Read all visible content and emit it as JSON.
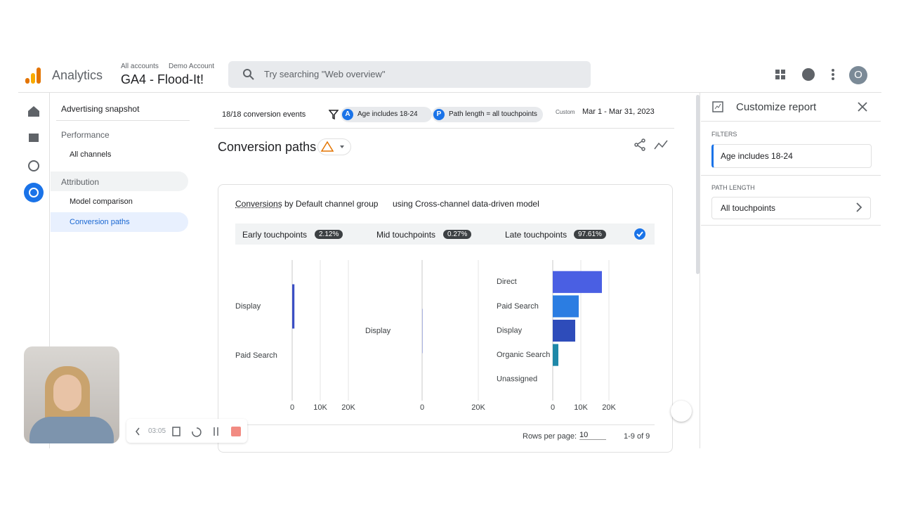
{
  "header": {
    "app": "Analytics",
    "breadcrumb_root": "All accounts",
    "breadcrumb_account": "Demo Account",
    "property": "GA4 - Flood-It!",
    "search_placeholder": "Try searching \"Web overview\"",
    "avatar": "O"
  },
  "nav": {
    "top": "Advertising snapshot",
    "sections": [
      {
        "label": "Performance",
        "items": [
          "All channels"
        ]
      },
      {
        "label": "Attribution",
        "items": [
          "Model comparison",
          "Conversion paths"
        ]
      }
    ]
  },
  "toolbar": {
    "events": "18/18 conversion events",
    "filter_a_badge": "A",
    "filter_a": "Age includes 18-24",
    "filter_p_badge": "P",
    "filter_p": "Path length = all touchpoints",
    "date_label": "Custom",
    "date_range": "Mar 1 - Mar 31, 2023"
  },
  "report": {
    "title": "Conversion paths",
    "card_metric": "Conversions",
    "card_dimension": "by Default channel group",
    "card_model": "using Cross-channel data-driven model",
    "stages": [
      {
        "name": "Early touchpoints",
        "share": "2.12%"
      },
      {
        "name": "Mid touchpoints",
        "share": "0.27%"
      },
      {
        "name": "Late touchpoints",
        "share": "97.61%"
      }
    ],
    "charts": [
      {
        "type": "bar",
        "categories": [
          "Display",
          "Paid Search"
        ],
        "values": [
          800,
          0
        ],
        "color": "#3b4fc4",
        "xlim": [
          0,
          20000
        ],
        "xticks": [
          0,
          {
            "value": 10000,
            "label": "10K"
          },
          {
            "value": 20000,
            "label": "20K"
          }
        ]
      },
      {
        "type": "bar",
        "categories": [
          "Display"
        ],
        "values": [
          100
        ],
        "color": "#3b4fc4",
        "xlim": [
          0,
          20000
        ],
        "xticks": [
          0,
          {
            "value": 20000,
            "label": "20K"
          }
        ]
      },
      {
        "type": "bar",
        "categories": [
          "Direct",
          "Paid Search",
          "Display",
          "Organic Search",
          "Unassigned"
        ],
        "values": [
          17500,
          9250,
          8000,
          2000,
          0
        ],
        "colors": [
          "#4a5fe3",
          "#2b7de2",
          "#2e4cba",
          "#1e88a8",
          "#1e88a8"
        ],
        "xlim": [
          0,
          20000
        ],
        "xticks": [
          0,
          {
            "value": 10000,
            "label": "10K"
          },
          {
            "value": 20000,
            "label": "20K"
          }
        ]
      }
    ],
    "rows_per_page_label": "Rows per page:",
    "rows_per_page": "10",
    "pagination": "1-9 of 9"
  },
  "panel": {
    "title": "Customize report",
    "filters_heading": "FILTERS",
    "filter": "Age includes 18-24",
    "path_length_heading": "PATH LENGTH",
    "path_length": "All touchpoints"
  },
  "recorder": {
    "time": "03:05"
  }
}
